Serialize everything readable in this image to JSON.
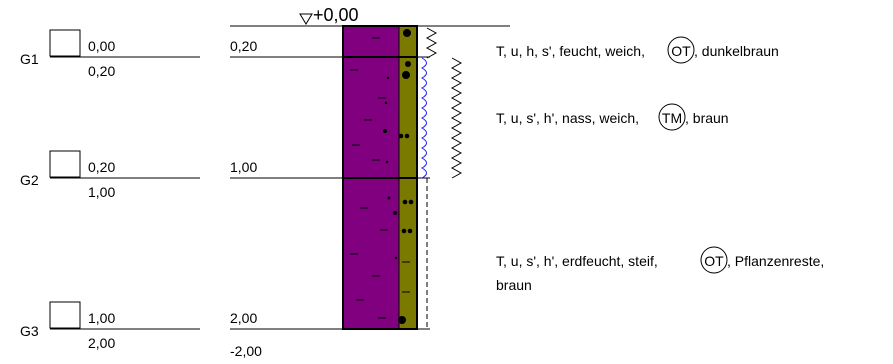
{
  "datum": {
    "label": "+0,00",
    "symbol": "triangle-down-icon"
  },
  "samples": [
    {
      "id": "G1",
      "top": "0,00",
      "bottom": "0,20"
    },
    {
      "id": "G2",
      "top": "0,20",
      "bottom": "1,00"
    },
    {
      "id": "G3",
      "top": "1,00",
      "bottom": "2,00"
    }
  ],
  "layer_depths": [
    "0,20",
    "1,00",
    "2,00"
  ],
  "final_depth": "-2,00",
  "layers": [
    {
      "text_before": "T, u, h, s', feucht, weich,",
      "circled": "OT",
      "text_after": ", dunkelbraun"
    },
    {
      "text_before": "T, u, s', h', nass, weich,",
      "circled": "TM",
      "text_after": ", braun"
    },
    {
      "text_before": "T, u, s', h', erdfeucht, steif,",
      "circled": "OT",
      "text_after": ", Pflanzenreste,",
      "text_line2": "braun"
    }
  ],
  "colors": {
    "soil_main": "#800080",
    "soil_side": "#7a7a00",
    "wave_blue": "#1a1aff",
    "line": "#000000"
  }
}
